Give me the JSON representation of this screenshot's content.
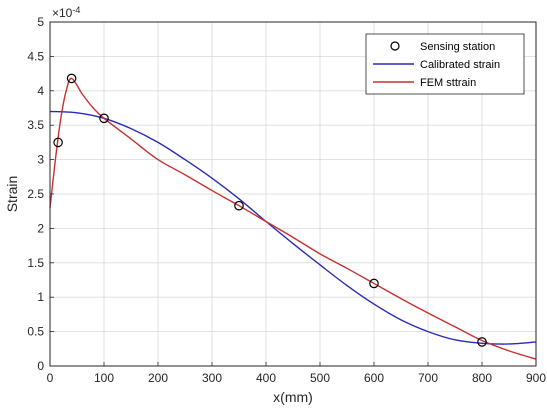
{
  "chart_data": {
    "type": "line",
    "xlabel": "x(mm)",
    "ylabel": "Strain",
    "y_exponent": "×10",
    "y_exponent_power": "-4",
    "xlim": [
      0,
      900
    ],
    "ylim": [
      0,
      5
    ],
    "xticks": [
      0,
      100,
      200,
      300,
      400,
      500,
      600,
      700,
      800,
      900
    ],
    "yticks": [
      0,
      0.5,
      1,
      1.5,
      2,
      2.5,
      3,
      3.5,
      4,
      4.5,
      5
    ],
    "xtick_labels": [
      "0",
      "100",
      "200",
      "300",
      "400",
      "500",
      "600",
      "700",
      "800",
      "900"
    ],
    "ytick_labels": [
      "0",
      "0.5",
      "1",
      "1.5",
      "2",
      "2.5",
      "3",
      "3.5",
      "4",
      "4.5",
      "5"
    ],
    "grid": true,
    "legend_position": "top-right",
    "series": [
      {
        "name": "Sensing station",
        "style": "marker",
        "color": "#000000",
        "x": [
          15,
          40,
          100,
          350,
          600,
          800
        ],
        "y": [
          3.25,
          4.18,
          3.6,
          2.33,
          1.2,
          0.35
        ]
      },
      {
        "name": "Calibrated strain",
        "style": "line",
        "color": "#2a2ab8",
        "x": [
          0,
          50,
          100,
          150,
          200,
          250,
          300,
          350,
          400,
          450,
          500,
          550,
          600,
          650,
          700,
          750,
          800,
          850,
          900
        ],
        "y": [
          3.7,
          3.68,
          3.6,
          3.45,
          3.25,
          3.0,
          2.73,
          2.43,
          2.1,
          1.78,
          1.47,
          1.17,
          0.9,
          0.67,
          0.5,
          0.38,
          0.33,
          0.32,
          0.35
        ]
      },
      {
        "name": "FEM sttrain",
        "style": "line",
        "color": "#c83030",
        "x": [
          0,
          10,
          20,
          30,
          40,
          60,
          80,
          100,
          150,
          200,
          250,
          300,
          350,
          400,
          450,
          500,
          550,
          600,
          650,
          700,
          750,
          800,
          850,
          900
        ],
        "y": [
          2.3,
          3.0,
          3.6,
          4.0,
          4.18,
          3.95,
          3.75,
          3.6,
          3.3,
          3.0,
          2.78,
          2.55,
          2.33,
          2.1,
          1.87,
          1.63,
          1.42,
          1.2,
          0.98,
          0.77,
          0.57,
          0.37,
          0.22,
          0.1
        ]
      }
    ]
  }
}
